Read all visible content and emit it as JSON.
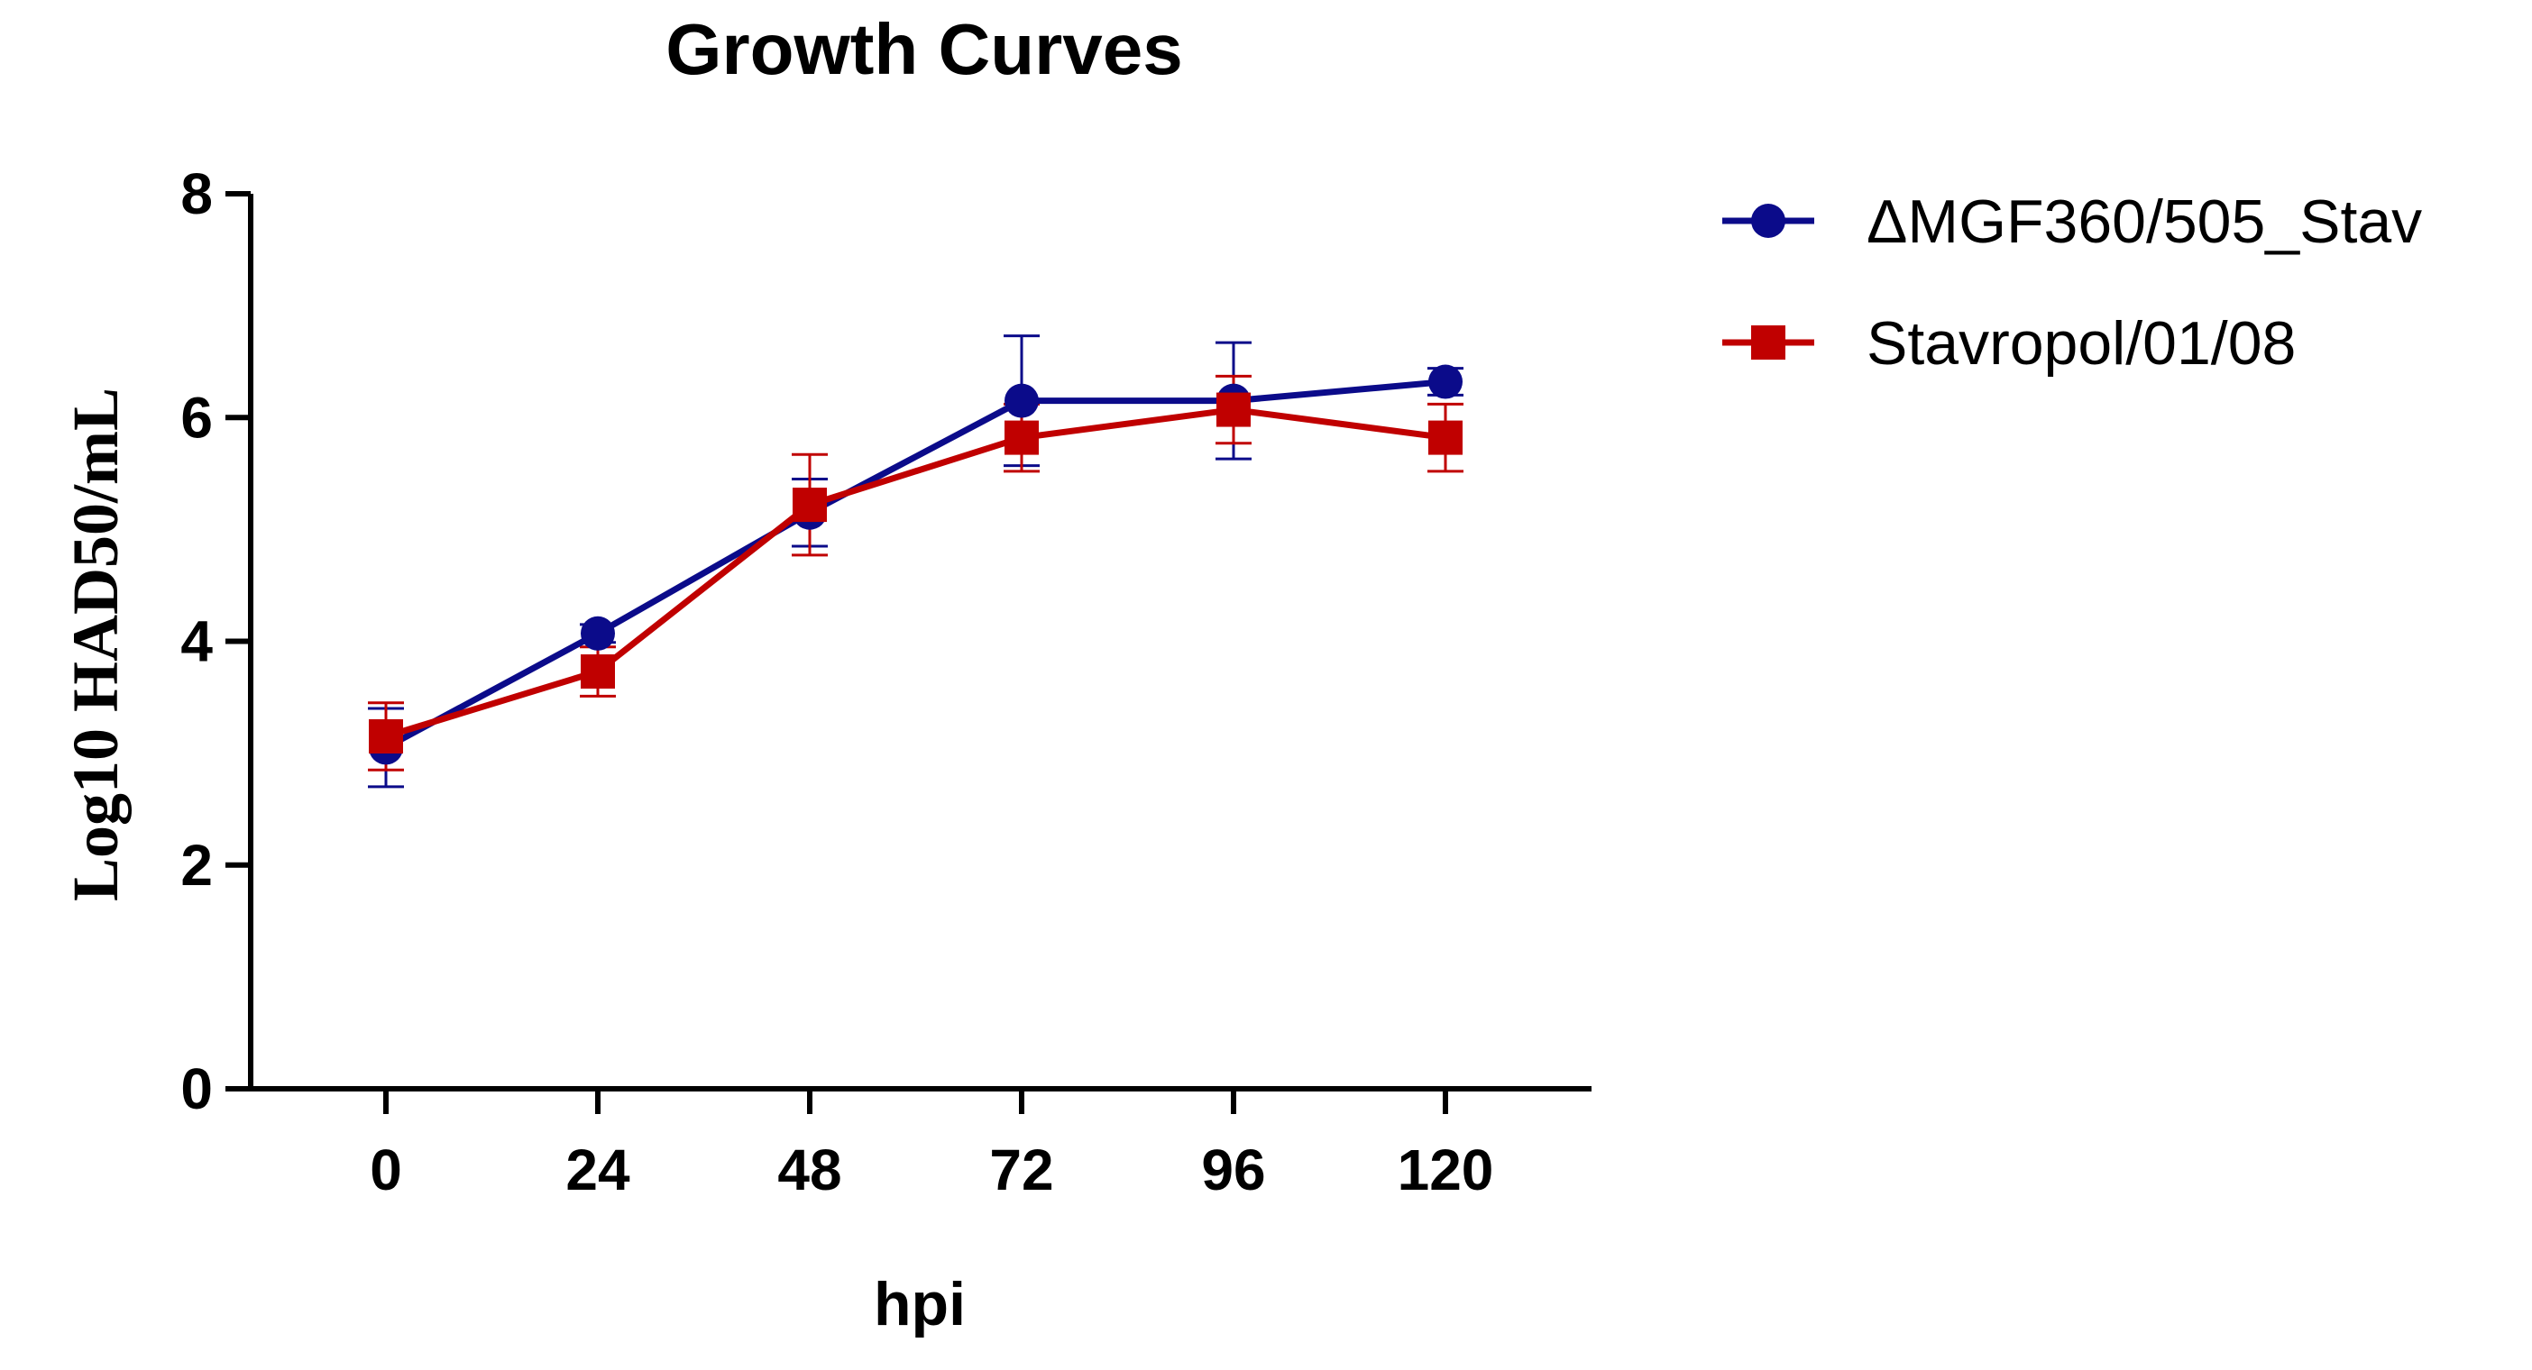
{
  "chart_data": {
    "type": "line",
    "title": "Growth Curves",
    "xlabel": "hpi",
    "ylabel": "Log10 HAD50/mL",
    "x": [
      0,
      24,
      48,
      72,
      96,
      120
    ],
    "x_tick_labels": [
      "0",
      "24",
      "48",
      "72",
      "96",
      "120"
    ],
    "ylim": [
      0,
      8
    ],
    "y_ticks": [
      0,
      2,
      4,
      6,
      8
    ],
    "y_tick_labels": [
      "0",
      "2",
      "4",
      "6",
      "8"
    ],
    "grid": false,
    "legend_position": "top-right",
    "series": [
      {
        "name": "ΔMGF360/505_Stav",
        "color": "#0b0b8a",
        "marker": "circle",
        "values": [
          3.05,
          4.07,
          5.15,
          6.15,
          6.15,
          6.32
        ],
        "error": [
          0.35,
          0.08,
          0.3,
          0.58,
          0.52,
          0.12
        ]
      },
      {
        "name": "Stavropol/01/08",
        "color": "#c00000",
        "marker": "square",
        "values": [
          3.15,
          3.73,
          5.22,
          5.82,
          6.07,
          5.82
        ],
        "error": [
          0.3,
          0.22,
          0.45,
          0.3,
          0.3,
          0.3
        ]
      }
    ]
  }
}
